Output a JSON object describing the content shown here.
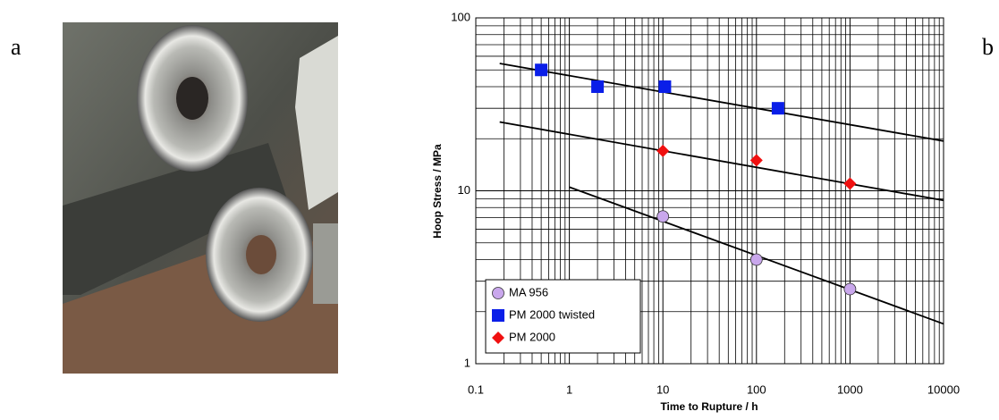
{
  "panels": [
    "a",
    "b"
  ],
  "chart_data": {
    "type": "scatter",
    "xlabel": "Time to Rupture / h",
    "ylabel": "Hoop Stress / MPa",
    "xscale": "log",
    "yscale": "log",
    "xlim": [
      0.1,
      10000
    ],
    "ylim": [
      1,
      100
    ],
    "xticks": [
      0.1,
      1,
      10,
      100,
      1000,
      10000
    ],
    "yticks": [
      1,
      10,
      100
    ],
    "grid": true,
    "legend": "lower left",
    "series": [
      {
        "name": "MA 956",
        "color": "#c9a7ec",
        "marker": "circle",
        "x": [
          10,
          100,
          1000
        ],
        "values": [
          7.1,
          4,
          2.7
        ]
      },
      {
        "name": "PM 2000 twisted",
        "color": "#0a1ee8",
        "marker": "square",
        "x": [
          0.5,
          2,
          10.5,
          170
        ],
        "values": [
          50,
          40,
          40,
          30
        ]
      },
      {
        "name": "PM 2000",
        "color": "#f01010",
        "marker": "diamond",
        "x": [
          10,
          100,
          1000
        ],
        "values": [
          17,
          15,
          11
        ]
      }
    ],
    "trendlines": [
      {
        "x": [
          0.18,
          10000
        ],
        "values": [
          54.5,
          19.4
        ]
      },
      {
        "x": [
          0.18,
          10000
        ],
        "values": [
          25,
          8.8
        ]
      },
      {
        "x": [
          1,
          10000
        ],
        "values": [
          10.5,
          1.7
        ]
      }
    ]
  }
}
